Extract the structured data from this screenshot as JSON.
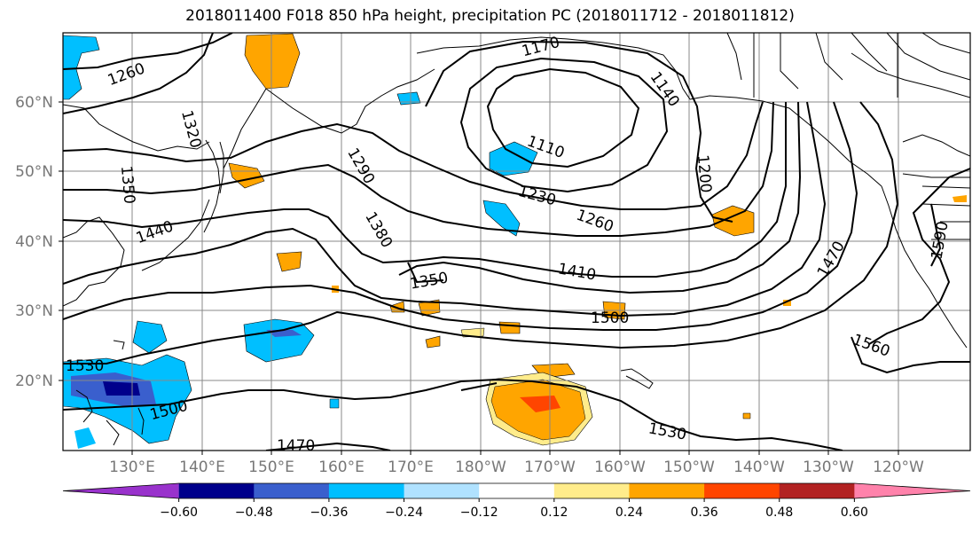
{
  "title": "2018011400 F018 850 hPa height, precipitation PC (2018011712 - 2018011812)",
  "lat_labels": [
    "60°N",
    "50°N",
    "40°N",
    "30°N",
    "20°N"
  ],
  "lon_labels": [
    "130°E",
    "140°E",
    "150°E",
    "160°E",
    "170°E",
    "180°W",
    "170°W",
    "160°W",
    "150°W",
    "140°W",
    "130°W",
    "120°W"
  ],
  "contour_labels": [
    "1260",
    "1320",
    "1350",
    "1440",
    "1170",
    "1140",
    "1290",
    "1380",
    "1110",
    "1200",
    "1230",
    "1260",
    "1350",
    "1410",
    "1470",
    "1590",
    "1500",
    "1530",
    "1500",
    "1470",
    "1530",
    "1560"
  ],
  "colorbar": {
    "ticks": [
      "−0.60",
      "−0.48",
      "−0.36",
      "−0.24",
      "−0.12",
      "0.12",
      "0.24",
      "0.36",
      "0.48",
      "0.60"
    ],
    "colors": [
      "#9932CC",
      "#00008B",
      "#3A5FCD",
      "#00BFFF",
      "#B0E2FF",
      "#FFFFFF",
      "#FFEC8B",
      "#FFA500",
      "#FF4500",
      "#B22222",
      "#FF82AB"
    ]
  }
}
